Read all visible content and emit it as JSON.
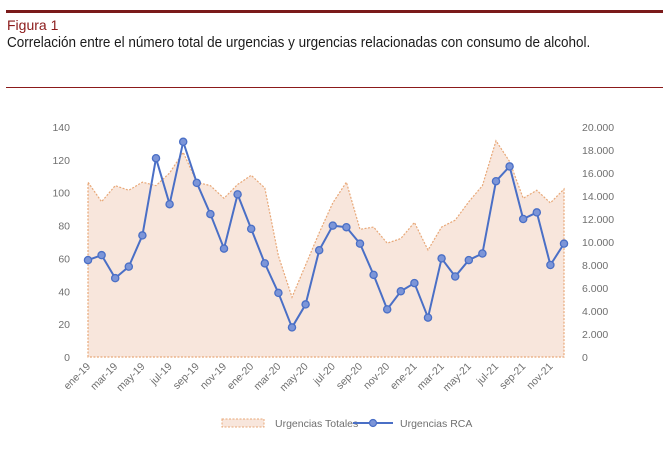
{
  "figure": {
    "label": "Figura 1",
    "title": "Correlación entre el número total de urgencias y urgencias relacionadas con consumo de alcohol."
  },
  "chart_data": {
    "type": "area+line",
    "title": "",
    "categories": [
      "ene-19",
      "feb-19",
      "mar-19",
      "abr-19",
      "may-19",
      "jun-19",
      "jul-19",
      "ago-19",
      "sep-19",
      "oct-19",
      "nov-19",
      "dic-19",
      "ene-20",
      "feb-20",
      "mar-20",
      "abr-20",
      "may-20",
      "jun-20",
      "jul-20",
      "ago-20",
      "sep-20",
      "oct-20",
      "nov-20",
      "dic-20",
      "ene-21",
      "feb-21",
      "mar-21",
      "abr-21",
      "may-21",
      "jun-21",
      "jul-21",
      "ago-21",
      "sep-21",
      "oct-21",
      "nov-21",
      "dic-21"
    ],
    "x_tick_labels": [
      "ene-19",
      "mar-19",
      "may-19",
      "jul-19",
      "sep-19",
      "nov-19",
      "ene-20",
      "mar-20",
      "may-20",
      "jul-20",
      "sep-20",
      "nov-20",
      "ene-21",
      "mar-21",
      "may-21",
      "jul-21",
      "sep-21",
      "nov-21"
    ],
    "left_axis": {
      "ylim": [
        0,
        140
      ],
      "ticks": [
        "0",
        "20",
        "40",
        "60",
        "80",
        "100",
        "120",
        "140"
      ]
    },
    "right_axis": {
      "ylim": [
        0,
        20000
      ],
      "ticks": [
        "0",
        "2.000",
        "4.000",
        "6.000",
        "8.000",
        "10.000",
        "12.000",
        "14.000",
        "16.000",
        "18.000",
        "20.000"
      ]
    },
    "series": [
      {
        "name": "Urgencias Totales",
        "axis": "right",
        "style": "area",
        "color": "#e8a878",
        "fill": "#f8e6dc",
        "values": [
          15200,
          13500,
          14900,
          14500,
          15200,
          14900,
          16000,
          17800,
          15200,
          14900,
          13800,
          15000,
          15800,
          14700,
          8800,
          5200,
          8000,
          10800,
          13400,
          15200,
          11100,
          11300,
          9900,
          10300,
          11700,
          9300,
          11300,
          11900,
          13500,
          14900,
          18800,
          17000,
          13800,
          14500,
          13400,
          14600
        ]
      },
      {
        "name": "Urgencias RCA",
        "axis": "left",
        "style": "line",
        "color": "#4a6fc6",
        "values": [
          59,
          62,
          48,
          55,
          74,
          121,
          93,
          131,
          106,
          87,
          66,
          99,
          78,
          57,
          39,
          18,
          32,
          65,
          80,
          79,
          69,
          50,
          29,
          40,
          45,
          24,
          60,
          49,
          59,
          63,
          107,
          116,
          84,
          88,
          56,
          69
        ]
      }
    ],
    "legend": {
      "position": "bottom",
      "entries": [
        "Urgencias Totales",
        "Urgencias RCA"
      ]
    }
  }
}
